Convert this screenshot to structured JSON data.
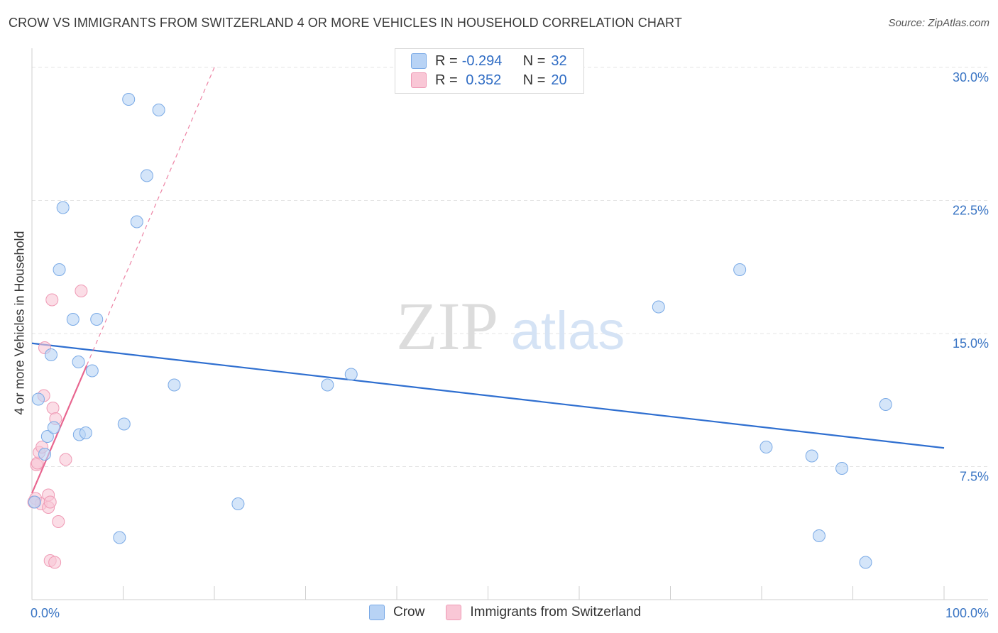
{
  "title": "CROW VS IMMIGRANTS FROM SWITZERLAND 4 OR MORE VEHICLES IN HOUSEHOLD CORRELATION CHART",
  "source": "Source: ZipAtlas.com",
  "watermark": {
    "zip": "ZIP",
    "atlas": "atlas"
  },
  "legend": {
    "rows": [
      {
        "r_label": "R =",
        "r_value": "-0.294",
        "n_label": "N =",
        "n_value": "32"
      },
      {
        "r_label": "R =",
        "r_value": " 0.352",
        "n_label": "N =",
        "n_value": "20"
      }
    ]
  },
  "bottom_legend": {
    "crow": "Crow",
    "swiss": "Immigrants from Switzerland"
  },
  "colors": {
    "crow_fill": "#b8d3f5",
    "crow_stroke": "#7aaae6",
    "crow_line": "#2f6fd0",
    "swiss_fill": "#f9c7d6",
    "swiss_stroke": "#ef9ab5",
    "swiss_line": "#e8658f",
    "axis_text": "#3a75c4",
    "grid": "#e4e4e4"
  },
  "chart_data": {
    "type": "scatter",
    "xlabel": "",
    "ylabel": "4 or more Vehicles in Household",
    "xlim": [
      0,
      100
    ],
    "ylim": [
      0,
      30
    ],
    "x_tick_labels": [
      "0.0%",
      "100.0%"
    ],
    "y_ticks": [
      7.5,
      15.0,
      22.5,
      30.0
    ],
    "y_tick_labels": [
      "7.5%",
      "15.0%",
      "22.5%",
      "30.0%"
    ],
    "series": [
      {
        "name": "Crow",
        "points": [
          [
            0.3,
            5.5
          ],
          [
            0.7,
            11.3
          ],
          [
            1.4,
            8.2
          ],
          [
            1.7,
            9.2
          ],
          [
            2.1,
            13.8
          ],
          [
            2.4,
            9.7
          ],
          [
            3.0,
            18.6
          ],
          [
            3.4,
            22.1
          ],
          [
            4.5,
            15.8
          ],
          [
            5.1,
            13.4
          ],
          [
            5.2,
            9.3
          ],
          [
            5.9,
            9.4
          ],
          [
            6.6,
            12.9
          ],
          [
            7.1,
            15.8
          ],
          [
            9.6,
            3.5
          ],
          [
            10.1,
            9.9
          ],
          [
            10.6,
            28.2
          ],
          [
            11.5,
            21.3
          ],
          [
            12.6,
            23.9
          ],
          [
            13.9,
            27.6
          ],
          [
            15.6,
            12.1
          ],
          [
            22.6,
            5.4
          ],
          [
            32.4,
            12.1
          ],
          [
            35.0,
            12.7
          ],
          [
            68.7,
            16.5
          ],
          [
            77.6,
            18.6
          ],
          [
            80.5,
            8.6
          ],
          [
            85.5,
            8.1
          ],
          [
            86.3,
            3.6
          ],
          [
            88.8,
            7.4
          ],
          [
            91.4,
            2.1
          ],
          [
            93.6,
            11.0
          ]
        ],
        "trend": {
          "x0": 0,
          "y0": 14.45,
          "x1": 100,
          "y1": 8.55
        }
      },
      {
        "name": "Immigrants from Switzerland",
        "points": [
          [
            0.4,
            5.7
          ],
          [
            0.5,
            7.6
          ],
          [
            0.6,
            7.7
          ],
          [
            0.8,
            8.3
          ],
          [
            1.0,
            5.4
          ],
          [
            1.1,
            8.6
          ],
          [
            1.3,
            11.5
          ],
          [
            1.4,
            14.2
          ],
          [
            1.8,
            5.9
          ],
          [
            1.8,
            5.2
          ],
          [
            2.0,
            5.5
          ],
          [
            2.0,
            2.2
          ],
          [
            2.2,
            16.9
          ],
          [
            2.3,
            10.8
          ],
          [
            2.5,
            2.1
          ],
          [
            2.6,
            10.2
          ],
          [
            2.9,
            4.4
          ],
          [
            3.7,
            7.9
          ],
          [
            5.4,
            17.4
          ],
          [
            0.2,
            5.5
          ]
        ],
        "trend_solid": {
          "x0": 0,
          "y0": 6.0,
          "x1": 6.0,
          "y1": 13.2
        },
        "trend_dashed": {
          "x0": 6.0,
          "y0": 13.2,
          "x1": 20.0,
          "y1": 30.0
        }
      }
    ]
  }
}
